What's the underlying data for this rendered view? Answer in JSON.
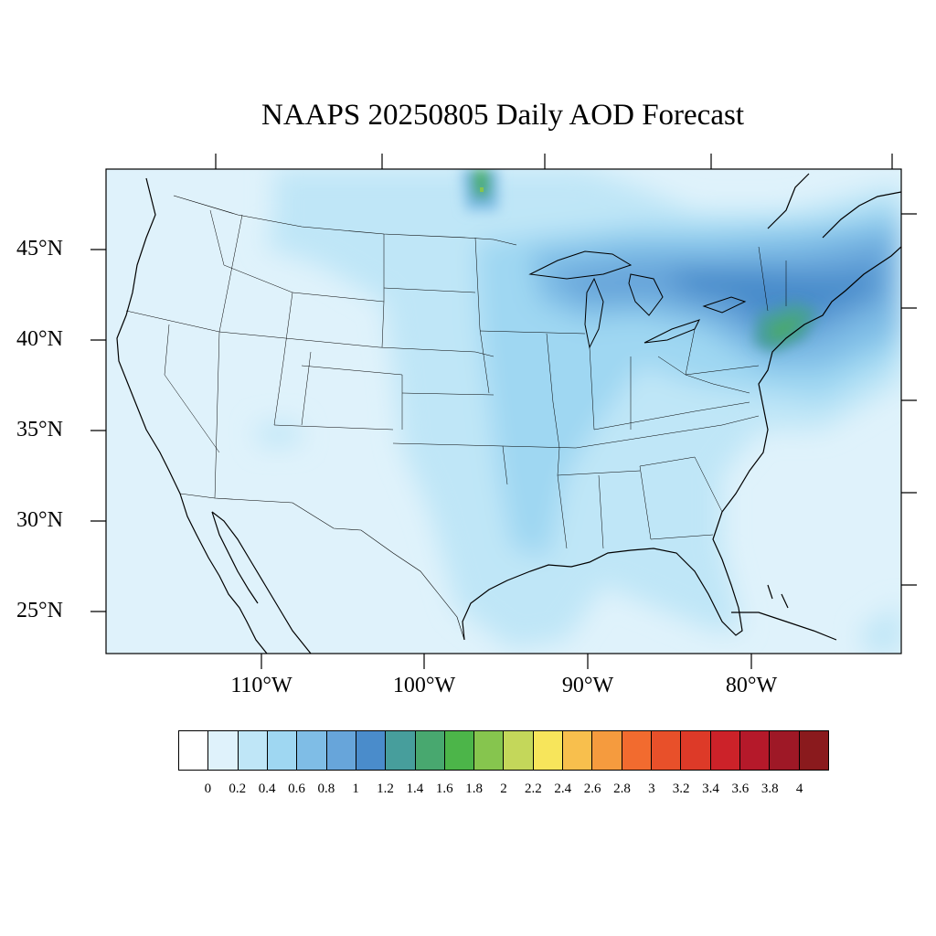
{
  "title": "NAAPS 20250805 Daily AOD Forecast",
  "map": {
    "region": "Continental United States",
    "lat_labels": [
      "45°N",
      "40°N",
      "35°N",
      "30°N",
      "25°N"
    ],
    "lon_labels": [
      "110°W",
      "100°W",
      "90°W",
      "80°W"
    ],
    "lon_range": [
      -119,
      -71
    ],
    "lat_range": [
      22.5,
      49.2
    ],
    "features": [
      {
        "name": "smoke plume",
        "region": "Northeast US / Great Lakes",
        "aod_range": [
          0.8,
          1.6
        ]
      },
      {
        "name": "smoke core",
        "region": "New Jersey / New York",
        "aod_range": [
          1.2,
          1.6
        ]
      },
      {
        "name": "smoke patch",
        "region": "Southern Manitoba",
        "aod_range": [
          1.2,
          1.8
        ]
      }
    ]
  },
  "colorbar": {
    "colors": [
      "#ffffff",
      "#dff2fb",
      "#bfe6f7",
      "#9fd7f2",
      "#7fbde6",
      "#67a5da",
      "#4a8ccb",
      "#479e9c",
      "#48a86f",
      "#4cb549",
      "#86c54e",
      "#c4d75a",
      "#f7e55b",
      "#f8bf4d",
      "#f59b3e",
      "#f26b2f",
      "#e8502a",
      "#dd3a28",
      "#cc2229",
      "#b5192a",
      "#9e1826",
      "#8a1a1d"
    ],
    "labels": [
      "0",
      "0.2",
      "0.4",
      "0.6",
      "0.8",
      "1",
      "1.2",
      "1.4",
      "1.6",
      "1.8",
      "2",
      "2.2",
      "2.4",
      "2.6",
      "2.8",
      "3",
      "3.2",
      "3.4",
      "3.6",
      "3.8",
      "4"
    ]
  }
}
